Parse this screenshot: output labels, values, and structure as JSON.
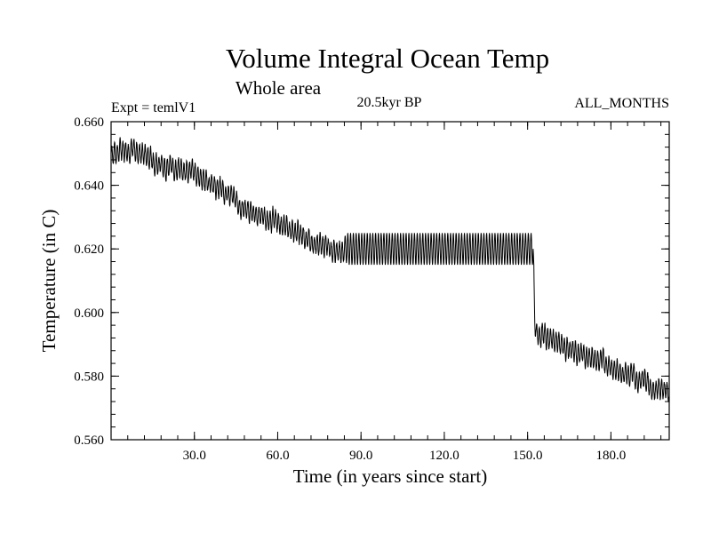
{
  "chart_data": {
    "type": "line",
    "title": "Volume Integral Ocean Temp",
    "subtitle": "Whole area",
    "annotations": {
      "left": "Expt = temlV1",
      "center": "20.5kyr BP",
      "right": "ALL_MONTHS"
    },
    "xlabel": "Time (in years since start)",
    "ylabel": "Temperature (in C)",
    "xlim": [
      0,
      201
    ],
    "ylim": [
      0.56,
      0.66
    ],
    "xticks": [
      30,
      60,
      90,
      120,
      150,
      180
    ],
    "xtick_labels": [
      "30.0",
      "60.0",
      "90.0",
      "120.0",
      "150.0",
      "180.0"
    ],
    "yticks": [
      0.56,
      0.58,
      0.6,
      0.62,
      0.64,
      0.66
    ],
    "ytick_labels": [
      "0.560",
      "0.580",
      "0.600",
      "0.620",
      "0.640",
      "0.660"
    ],
    "series": [
      {
        "name": "Volume integral ocean temperature",
        "color": "#000000",
        "description": "annual-cycle oscillation around a trend",
        "trend": {
          "x": [
            0,
            5,
            12,
            20,
            30,
            40,
            50,
            60,
            70,
            80,
            85,
            152,
            152.5,
            153,
            160,
            170,
            180,
            190,
            201
          ],
          "y": [
            0.65,
            0.652,
            0.65,
            0.646,
            0.644,
            0.638,
            0.632,
            0.628,
            0.624,
            0.619,
            0.62,
            0.62,
            0.6,
            0.594,
            0.591,
            0.587,
            0.583,
            0.579,
            0.575
          ]
        },
        "annual_amplitude": {
          "x": [
            0,
            84,
            85,
            152,
            153,
            201
          ],
          "y": [
            0.003,
            0.003,
            0.005,
            0.005,
            0.003,
            0.003
          ]
        }
      }
    ]
  }
}
